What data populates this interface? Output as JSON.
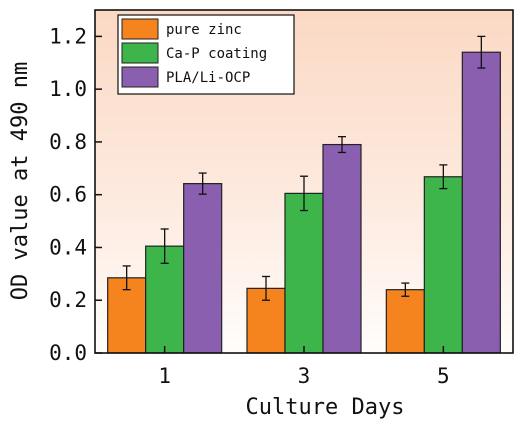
{
  "chart_data": {
    "type": "bar",
    "title": "",
    "xlabel": "Culture Days",
    "ylabel": "OD value at 490 nm",
    "categories": [
      "1",
      "3",
      "5"
    ],
    "ylim": [
      0,
      1.3
    ],
    "yticks": [
      "0.0",
      "0.2",
      "0.4",
      "0.6",
      "0.8",
      "1.0",
      "1.2"
    ],
    "grid": false,
    "legend_position": "top-left",
    "background": "light peach gradient",
    "series": [
      {
        "name": "pure zinc",
        "color": "#f5841f",
        "values": [
          0.285,
          0.245,
          0.24
        ],
        "errors": [
          0.045,
          0.045,
          0.025
        ]
      },
      {
        "name": "Ca-P coating",
        "color": "#3db54a",
        "values": [
          0.405,
          0.605,
          0.668
        ],
        "errors": [
          0.065,
          0.065,
          0.045
        ]
      },
      {
        "name": "PLA/Li-OCP",
        "color": "#8b5fb0",
        "values": [
          0.642,
          0.79,
          1.14
        ],
        "errors": [
          0.04,
          0.03,
          0.06
        ]
      }
    ]
  }
}
